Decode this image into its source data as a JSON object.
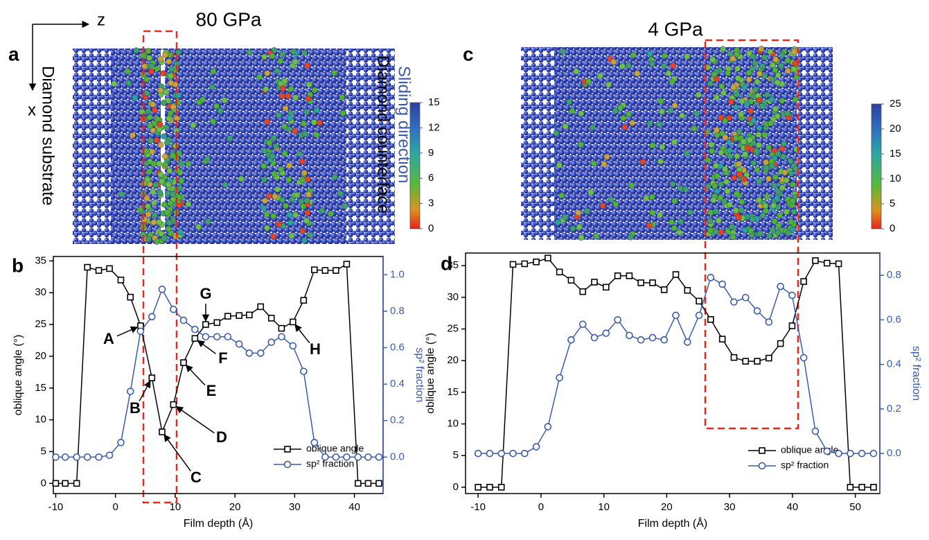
{
  "chart_data": [
    {
      "type": "line",
      "label": "b",
      "x_label": "Film depth (Å)",
      "y_label": "oblique angle (°)",
      "y2_label": "sp² fraction",
      "x": [
        -10,
        -8.4,
        -6.5,
        -4.7,
        -2.8,
        -1,
        0.9,
        2.5,
        4.2,
        6.1,
        7.8,
        9.7,
        11.4,
        13.3,
        15.1,
        17,
        18.8,
        20.7,
        22.4,
        24.3,
        26.1,
        27.8,
        29.7,
        31.5,
        33.3,
        35.1,
        36.9,
        38.7,
        40.6,
        42.3,
        44.1
      ],
      "series": [
        {
          "name": "oblique angle",
          "color": "#000000",
          "marker": "square",
          "values": [
            0,
            0,
            0,
            34,
            33.5,
            33.8,
            32,
            29.3,
            24.8,
            16.6,
            8.1,
            12.4,
            19,
            22.8,
            25,
            25.3,
            26.3,
            26.4,
            26.5,
            27.8,
            26,
            24.4,
            25.4,
            28.8,
            33.6,
            33.5,
            33.5,
            34.5,
            0,
            0,
            0
          ]
        },
        {
          "name": "sp² fraction",
          "color": "#3a5bab",
          "marker": "circle",
          "axis": "y2",
          "values": [
            0,
            0,
            0,
            0,
            0,
            0.01,
            0.08,
            0.36,
            0.69,
            0.77,
            0.92,
            0.81,
            0.75,
            0.7,
            0.66,
            0.66,
            0.66,
            0.62,
            0.57,
            0.57,
            0.63,
            0.66,
            0.61,
            0.47,
            0.08,
            0,
            0,
            0,
            0,
            0,
            0
          ]
        }
      ],
      "annotations": [
        "A",
        "B",
        "C",
        "D",
        "E",
        "F",
        "G",
        "H"
      ],
      "xlim": [
        -10.4,
        44.8
      ],
      "xticks": [
        -10,
        0,
        10,
        20,
        30,
        40
      ],
      "ylim": [
        -1.6,
        35.7
      ],
      "yticks": [
        0,
        5,
        10,
        15,
        20,
        25,
        30,
        35
      ],
      "y2lim": [
        -0.2,
        1.1
      ],
      "y2ticks": [
        {
          "value": 0,
          "label": "0.0"
        },
        {
          "value": 0.2,
          "label": "0.2"
        },
        {
          "value": 0.4,
          "label": "0.4"
        },
        {
          "value": 0.6,
          "label": "0.6"
        },
        {
          "value": 0.8,
          "label": "0.8"
        },
        {
          "value": 1,
          "label": "1.0"
        }
      ],
      "legend": "lower right"
    },
    {
      "type": "line",
      "label": "d",
      "x_label": "Film depth (Å)",
      "y_label": "oblique angle (°)",
      "y2_label": "sp² fraction",
      "x": [
        -10,
        -8.15,
        -6.3,
        -4.45,
        -2.6,
        -0.75,
        1.1,
        2.95,
        4.8,
        6.65,
        8.5,
        10.35,
        12.2,
        14.05,
        15.9,
        17.75,
        19.6,
        21.45,
        23.3,
        25.15,
        27,
        28.85,
        30.7,
        32.55,
        34.4,
        36.25,
        38.1,
        39.95,
        41.8,
        43.65,
        45.5,
        47.35,
        49.2,
        51.05,
        52.9
      ],
      "series": [
        {
          "name": "oblique angle",
          "color": "#000000",
          "marker": "square",
          "values": [
            0,
            0,
            0,
            35.2,
            35.3,
            35.6,
            36.2,
            34,
            32.7,
            30.9,
            32.4,
            31.6,
            33.4,
            33.4,
            32.3,
            32.3,
            31.2,
            33.6,
            31.1,
            29.4,
            26.5,
            23.4,
            20.5,
            19.9,
            19.9,
            20.4,
            22.7,
            25.5,
            32.5,
            35.8,
            35.4,
            35.3,
            0,
            0,
            0
          ]
        },
        {
          "name": "sp² fraction",
          "color": "#3a5bab",
          "marker": "circle",
          "axis": "y2",
          "values": [
            0,
            0,
            0,
            0,
            0,
            0.03,
            0.12,
            0.34,
            0.51,
            0.58,
            0.52,
            0.54,
            0.6,
            0.53,
            0.51,
            0.52,
            0.51,
            0.62,
            0.5,
            0.62,
            0.79,
            0.76,
            0.68,
            0.7,
            0.64,
            0.59,
            0.75,
            0.71,
            0.43,
            0.1,
            0.01,
            0,
            0,
            0,
            0
          ]
        }
      ],
      "xlim": [
        -12,
        53.9
      ],
      "xticks": [
        -10,
        0,
        10,
        20,
        30,
        40,
        50
      ],
      "ylim": [
        -1,
        37
      ],
      "yticks": [
        0,
        5,
        10,
        15,
        20,
        25,
        30,
        35
      ],
      "y2lim": [
        -0.18,
        0.9
      ],
      "y2ticks": [
        {
          "value": 0,
          "label": "0.0"
        },
        {
          "value": 0.2,
          "label": "0.2"
        },
        {
          "value": 0.4,
          "label": "0.4"
        },
        {
          "value": 0.6,
          "label": "0.6"
        },
        {
          "value": 0.8,
          "label": "0.8"
        }
      ],
      "legend": "lower right"
    }
  ],
  "panels": {
    "a": {
      "label": "a",
      "title": "80 GPa",
      "axis_z": "z",
      "axis_x": "x",
      "left_text": "Diamond substrate",
      "right_text": "Diamond counterface",
      "arrow_text": "Sliding direction",
      "colorbar": {
        "lim": [
          0,
          15
        ],
        "ticks": [
          0,
          3,
          6,
          9,
          12,
          15
        ]
      }
    },
    "c": {
      "label": "c",
      "title": "4 GPa",
      "colorbar": {
        "lim": [
          0,
          25
        ],
        "ticks": [
          0,
          5,
          10,
          15,
          20,
          25
        ]
      }
    }
  }
}
